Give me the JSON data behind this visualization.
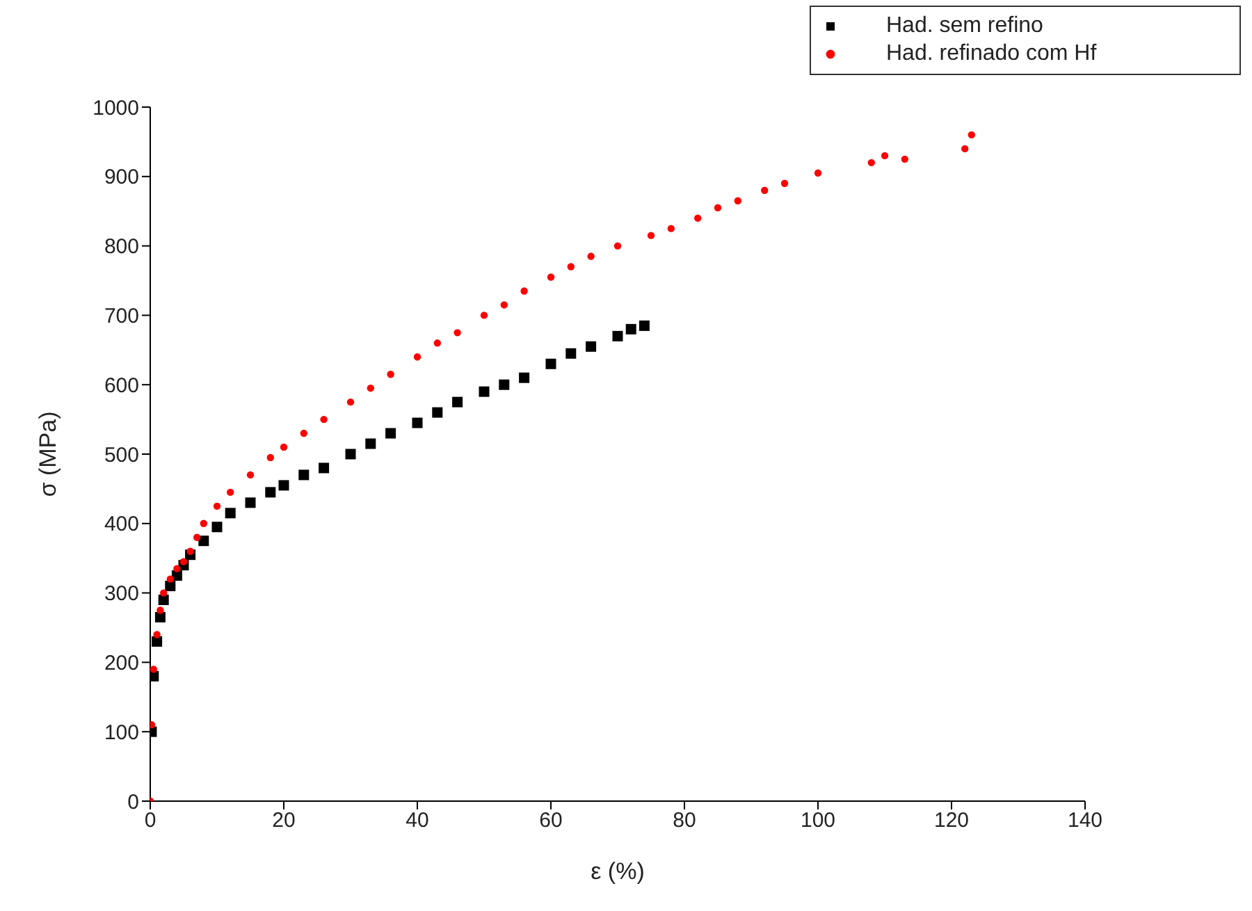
{
  "chart_data": {
    "type": "scatter",
    "xlabel": "ε (%)",
    "ylabel": "σ (MPa)",
    "xlim": [
      0,
      140
    ],
    "xticks": [
      0,
      20,
      40,
      60,
      80,
      100,
      120,
      140
    ],
    "ylim": [
      0,
      1000
    ],
    "yticks": [
      0,
      100,
      200,
      300,
      400,
      500,
      600,
      700,
      800,
      900,
      1000
    ],
    "grid": false,
    "legend": "top right",
    "series": [
      {
        "name": "Had. sem refino",
        "color": "#000000",
        "marker": "square",
        "x": [
          0.2,
          0.5,
          1,
          1.5,
          2,
          3,
          4,
          5,
          6,
          8,
          10,
          12,
          15,
          18,
          20,
          23,
          26,
          30,
          33,
          36,
          40,
          43,
          46,
          50,
          53,
          56,
          60,
          63,
          66,
          70,
          72,
          74
        ],
        "values": [
          100,
          180,
          230,
          265,
          290,
          310,
          325,
          340,
          355,
          375,
          395,
          415,
          430,
          445,
          455,
          470,
          480,
          500,
          515,
          530,
          545,
          560,
          575,
          590,
          600,
          610,
          630,
          645,
          655,
          670,
          680,
          685
        ]
      },
      {
        "name": "Had. refinado com Hf",
        "color": "#ff0000",
        "marker": "circle",
        "x": [
          0,
          0.2,
          0.5,
          1,
          1.5,
          2,
          3,
          4,
          5,
          6,
          7,
          8,
          10,
          12,
          15,
          18,
          20,
          23,
          26,
          30,
          33,
          36,
          40,
          43,
          46,
          50,
          53,
          56,
          60,
          63,
          66,
          70,
          75,
          78,
          82,
          85,
          88,
          92,
          95,
          100,
          108,
          110,
          113,
          122,
          123
        ],
        "values": [
          0,
          110,
          190,
          240,
          275,
          300,
          320,
          335,
          345,
          360,
          380,
          400,
          425,
          445,
          470,
          495,
          510,
          530,
          550,
          575,
          595,
          615,
          640,
          660,
          675,
          700,
          715,
          735,
          755,
          770,
          785,
          800,
          815,
          825,
          840,
          855,
          865,
          880,
          890,
          905,
          920,
          930,
          925,
          940,
          960
        ]
      }
    ]
  }
}
